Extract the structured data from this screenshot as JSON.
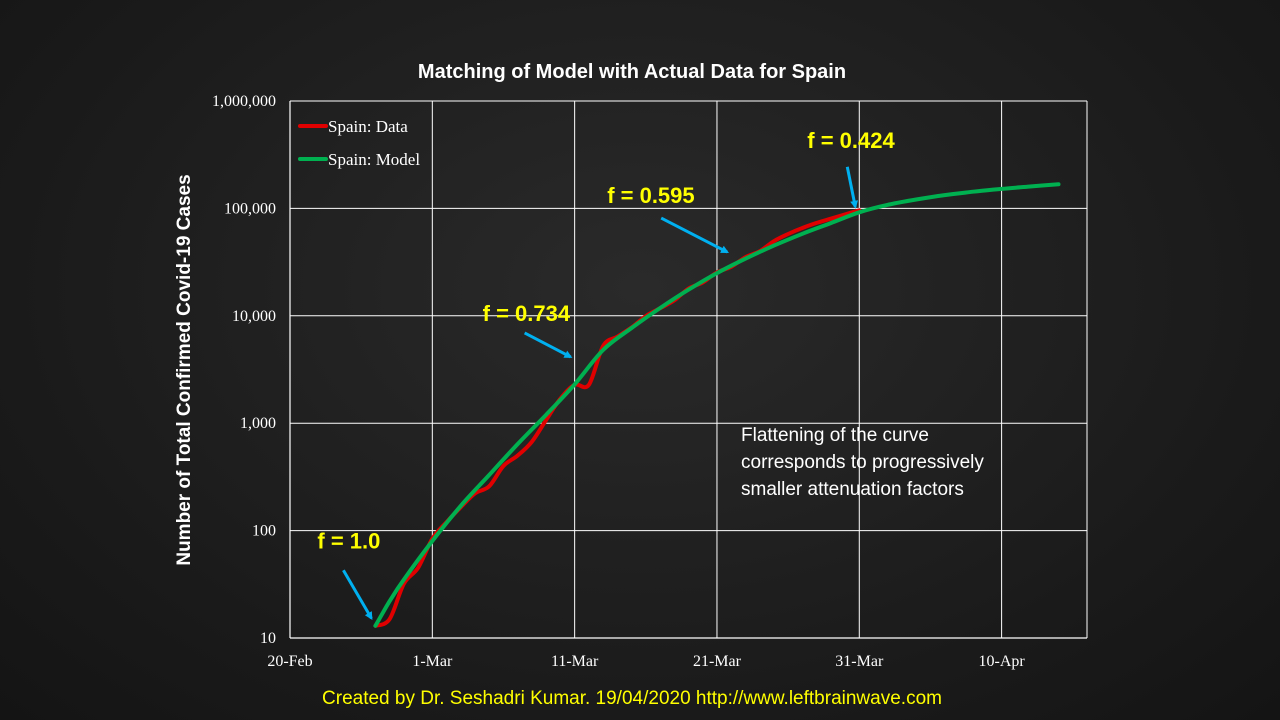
{
  "chart_data": {
    "type": "line",
    "title": "Matching of Model with Actual Data for Spain",
    "ylabel": "Number of Total Confirmed Covid-19 Cases",
    "xlabel": "",
    "y_scale": "log",
    "ylim": [
      10,
      1000000
    ],
    "xlim": [
      "2020-02-20",
      "2020-04-16"
    ],
    "y_ticks": [
      "10",
      "100",
      "1,000",
      "10,000",
      "100,000",
      "1,000,000"
    ],
    "x_ticks": [
      "20-Feb",
      "1-Mar",
      "11-Mar",
      "21-Mar",
      "31-Mar",
      "10-Apr"
    ],
    "grid": true,
    "legend_position": "top-left",
    "series": [
      {
        "name": "Spain: Data",
        "color": "#e00000",
        "points": [
          [
            "2020-02-26",
            13
          ],
          [
            "2020-02-27",
            15
          ],
          [
            "2020-02-28",
            32
          ],
          [
            "2020-02-29",
            45
          ],
          [
            "2020-03-01",
            84
          ],
          [
            "2020-03-02",
            120
          ],
          [
            "2020-03-03",
            165
          ],
          [
            "2020-03-04",
            222
          ],
          [
            "2020-03-05",
            259
          ],
          [
            "2020-03-06",
            400
          ],
          [
            "2020-03-07",
            500
          ],
          [
            "2020-03-08",
            673
          ],
          [
            "2020-03-09",
            1073
          ],
          [
            "2020-03-10",
            1695
          ],
          [
            "2020-03-11",
            2277
          ],
          [
            "2020-03-12",
            2277
          ],
          [
            "2020-03-13",
            5232
          ],
          [
            "2020-03-14",
            6391
          ],
          [
            "2020-03-15",
            7798
          ],
          [
            "2020-03-16",
            9942
          ],
          [
            "2020-03-17",
            11748
          ],
          [
            "2020-03-18",
            13910
          ],
          [
            "2020-03-19",
            17963
          ],
          [
            "2020-03-20",
            20410
          ],
          [
            "2020-03-21",
            25374
          ],
          [
            "2020-03-22",
            28603
          ],
          [
            "2020-03-23",
            35136
          ],
          [
            "2020-03-24",
            39885
          ],
          [
            "2020-03-25",
            49515
          ],
          [
            "2020-03-26",
            57786
          ],
          [
            "2020-03-27",
            65719
          ],
          [
            "2020-03-28",
            73235
          ],
          [
            "2020-03-29",
            80110
          ],
          [
            "2020-03-30",
            87956
          ],
          [
            "2020-03-31",
            95923
          ]
        ]
      },
      {
        "name": "Spain: Model",
        "color": "#00b050",
        "points": [
          [
            "2020-02-26",
            13
          ],
          [
            "2020-02-27",
            22
          ],
          [
            "2020-02-28",
            35
          ],
          [
            "2020-03-01",
            80
          ],
          [
            "2020-03-03",
            170
          ],
          [
            "2020-03-05",
            330
          ],
          [
            "2020-03-07",
            640
          ],
          [
            "2020-03-09",
            1200
          ],
          [
            "2020-03-11",
            2300
          ],
          [
            "2020-03-13",
            4800
          ],
          [
            "2020-03-15",
            7700
          ],
          [
            "2020-03-17",
            11800
          ],
          [
            "2020-03-19",
            17500
          ],
          [
            "2020-03-21",
            25000
          ],
          [
            "2020-03-23",
            34000
          ],
          [
            "2020-03-25",
            45000
          ],
          [
            "2020-03-27",
            58000
          ],
          [
            "2020-03-29",
            73000
          ],
          [
            "2020-03-31",
            92000
          ],
          [
            "2020-04-02",
            108000
          ],
          [
            "2020-04-04",
            121000
          ],
          [
            "2020-04-06",
            133000
          ],
          [
            "2020-04-08",
            143000
          ],
          [
            "2020-04-10",
            152000
          ],
          [
            "2020-04-12",
            160000
          ],
          [
            "2020-04-14",
            168000
          ]
        ]
      }
    ],
    "annotations": [
      {
        "text": "f = 1.0",
        "date": "2020-02-26",
        "value": 14,
        "color": "#ffff00",
        "arrow_color": "#00b0f0"
      },
      {
        "text": "f = 0.734",
        "date": "2020-03-11",
        "value": 3800,
        "color": "#ffff00",
        "arrow_color": "#00b0f0"
      },
      {
        "text": "f = 0.595",
        "date": "2020-03-22",
        "value": 36000,
        "color": "#ffff00",
        "arrow_color": "#00b0f0"
      },
      {
        "text": "f = 0.424",
        "date": "2020-03-31",
        "value": 95000,
        "color": "#ffff00",
        "arrow_color": "#00b0f0"
      }
    ],
    "note": [
      "Flattening of the curve",
      "corresponds to progressively",
      "smaller attenuation factors"
    ]
  },
  "footer": "Created by Dr. Seshadri Kumar. 19/04/2020 http://www.leftbrainwave.com",
  "colors": {
    "background": "#1c1c1c",
    "grid": "#ffffff",
    "text": "#ffffff",
    "highlight": "#ffff00",
    "arrow": "#00b0f0"
  }
}
